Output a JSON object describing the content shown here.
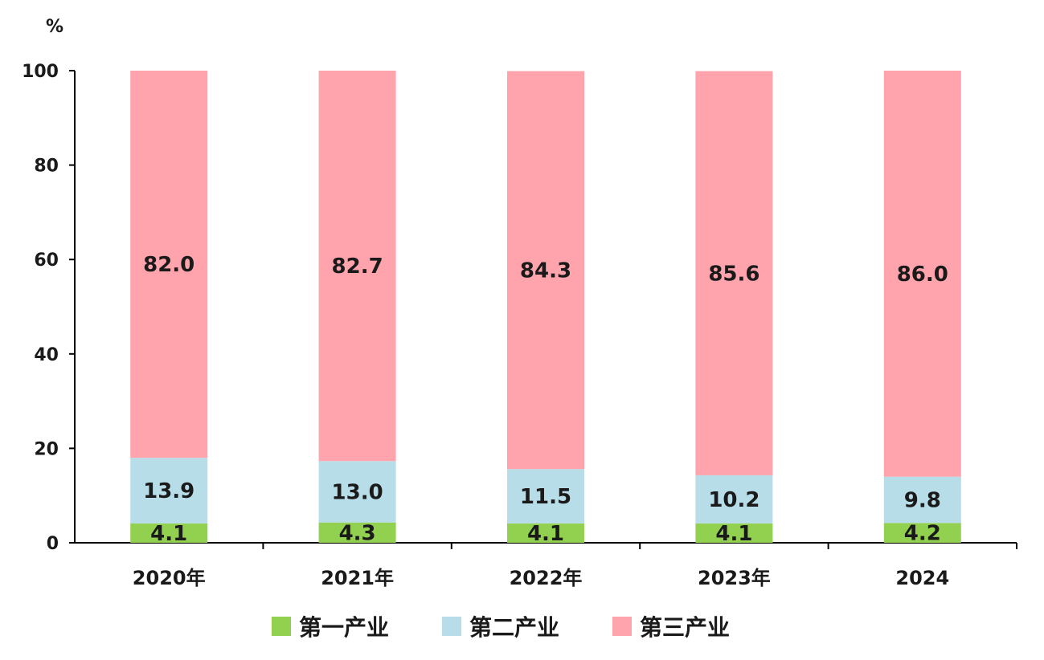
{
  "chart_data": {
    "type": "bar",
    "stacked": true,
    "unit_label": "%",
    "categories": [
      "2020年",
      "2021年",
      "2022年",
      "2023年",
      "2024"
    ],
    "series": [
      {
        "name": "第一产业",
        "color": "#92d050",
        "values": [
          4.1,
          4.3,
          4.1,
          4.1,
          4.2
        ]
      },
      {
        "name": "第二产业",
        "color": "#b7dde8",
        "values": [
          13.9,
          13.0,
          11.5,
          10.2,
          9.8
        ]
      },
      {
        "name": "第三产业",
        "color": "#ffa3ad",
        "values": [
          82.0,
          82.7,
          84.3,
          85.6,
          86.0
        ]
      }
    ],
    "ylim": [
      0,
      100
    ],
    "yticks": [
      0,
      20,
      40,
      60,
      80,
      100
    ],
    "grid": false,
    "legend_position": "bottom"
  }
}
